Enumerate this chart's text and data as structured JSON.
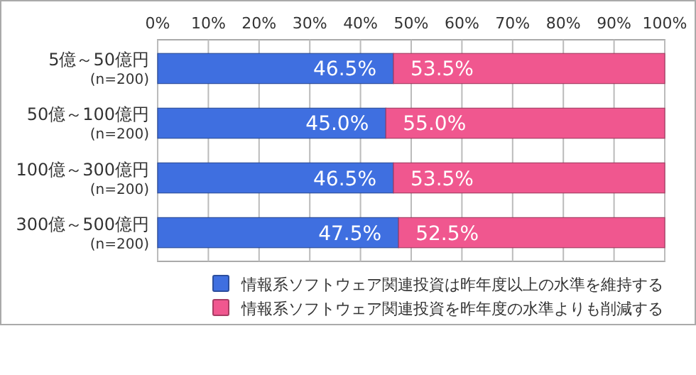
{
  "chart_data": {
    "type": "bar",
    "orientation": "horizontal",
    "stacked": true,
    "categories": [
      "5億～50億円\n(n=200)",
      "50億～100億円\n(n=200)",
      "100億～300億円\n(n=200)",
      "300億～500億円\n(n=200)"
    ],
    "series": [
      {
        "name": "情報系ソフトウェア関連投資は昨年度以上の水準を維持する",
        "color": "#3f6fe0",
        "values": [
          46.5,
          45.0,
          46.5,
          47.5
        ],
        "value_labels": [
          "46.5%",
          "45.0%",
          "46.5%",
          "47.5%"
        ]
      },
      {
        "name": "情報系ソフトウェア関連投資を昨年度の水準よりも削減する",
        "color": "#f0578f",
        "values": [
          53.5,
          55.0,
          53.5,
          52.5
        ],
        "value_labels": [
          "53.5%",
          "55.0%",
          "53.5%",
          "52.5%"
        ]
      }
    ],
    "xlim": [
      0,
      100
    ],
    "xticks": [
      {
        "value": 0,
        "label": "0%"
      },
      {
        "value": 10,
        "label": "10%"
      },
      {
        "value": 20,
        "label": "20%"
      },
      {
        "value": 30,
        "label": "30%"
      },
      {
        "value": 40,
        "label": "40%"
      },
      {
        "value": 50,
        "label": "50%"
      },
      {
        "value": 60,
        "label": "60%"
      },
      {
        "value": 70,
        "label": "70%"
      },
      {
        "value": 80,
        "label": "80%"
      },
      {
        "value": 90,
        "label": "90%"
      },
      {
        "value": 100,
        "label": "100%"
      }
    ],
    "grid": "x",
    "legend": "bottom"
  }
}
